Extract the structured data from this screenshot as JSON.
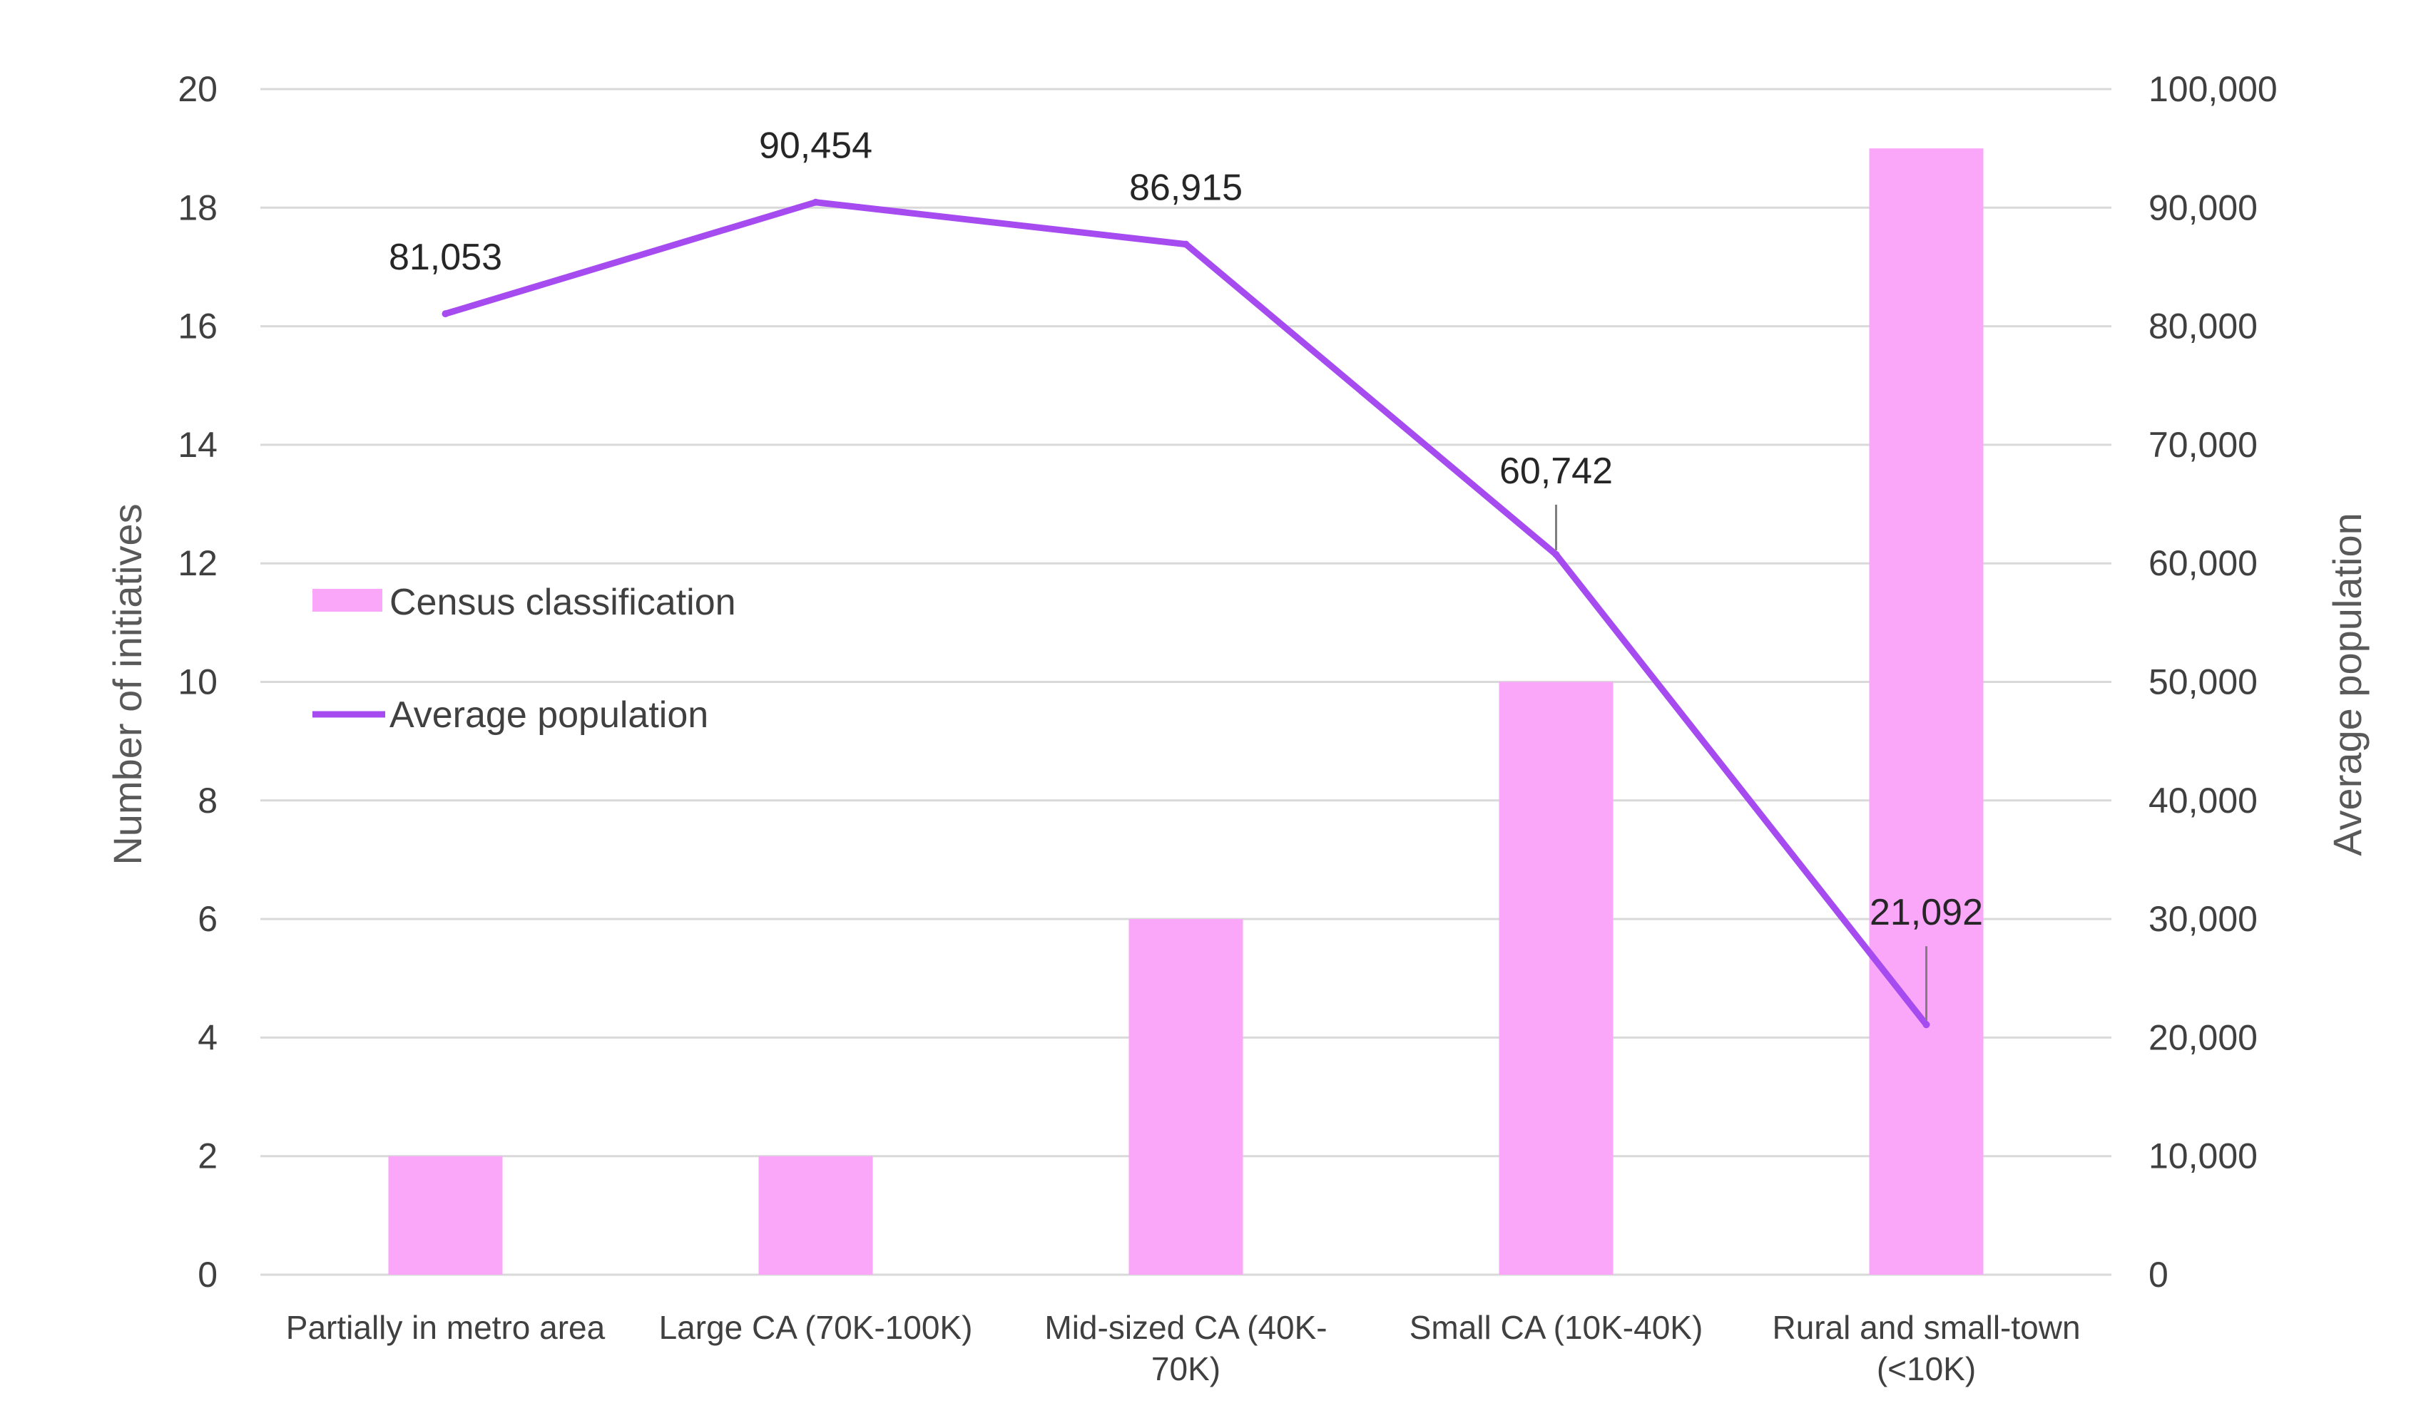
{
  "chart_data": {
    "type": "bar+line",
    "categories": [
      [
        "Partially in metro area"
      ],
      [
        "Large CA (70K-100K)"
      ],
      [
        "Mid-sized CA (40K-",
        "70K)"
      ],
      [
        "Small CA (10K-40K)"
      ],
      [
        "Rural and small-town",
        "(<10K)"
      ]
    ],
    "series": [
      {
        "name": "Census classification",
        "type": "bar",
        "axis": "left",
        "color": "#FAA7FA",
        "values": [
          2,
          2,
          6,
          10,
          19
        ]
      },
      {
        "name": "Average population",
        "type": "line",
        "axis": "right",
        "color": "#A64BF0",
        "values": [
          81053,
          90454,
          86915,
          60742,
          21092
        ],
        "data_labels": [
          "81,053",
          "90,454",
          "86,915",
          "60,742",
          "21,092"
        ]
      }
    ],
    "y_left": {
      "label": "Number of initiatives",
      "range": [
        0,
        20
      ],
      "ticks": [
        "0",
        "2",
        "4",
        "6",
        "8",
        "10",
        "12",
        "14",
        "16",
        "18",
        "20"
      ]
    },
    "y_right": {
      "label": "Average population",
      "range": [
        0,
        100000
      ],
      "ticks": [
        "0",
        "10,000",
        "20,000",
        "30,000",
        "40,000",
        "50,000",
        "60,000",
        "70,000",
        "80,000",
        "90,000",
        "100,000"
      ]
    },
    "grid": true,
    "legend_position": "left-middle",
    "gridline_color": "#D9D9D9",
    "label_color": "#404040"
  }
}
